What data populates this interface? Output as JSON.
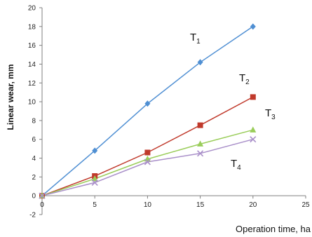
{
  "chart_data": {
    "type": "line",
    "title": "",
    "xlabel": "Operation time, ha",
    "ylabel": "Linear wear, mm",
    "xlim": [
      0,
      25
    ],
    "ylim": [
      -2,
      20
    ],
    "x_ticks": [
      "0",
      "5",
      "10",
      "15",
      "20",
      "25"
    ],
    "y_ticks": [
      "-2",
      "0",
      "2",
      "4",
      "6",
      "8",
      "10",
      "12",
      "14",
      "16",
      "18",
      "20"
    ],
    "grid": false,
    "x": [
      0,
      5,
      10,
      15,
      20
    ],
    "series": [
      {
        "name": "T1",
        "label_main": "T",
        "label_sub": "1",
        "marker": "diamond",
        "color": "#4f8fd3",
        "values": [
          0,
          4.8,
          9.8,
          14.2,
          18
        ]
      },
      {
        "name": "T2",
        "label_main": "T",
        "label_sub": "2",
        "marker": "square",
        "color": "#c0392b",
        "values": [
          0,
          2.1,
          4.6,
          7.5,
          10.5
        ]
      },
      {
        "name": "T3",
        "label_main": "T",
        "label_sub": "3",
        "marker": "triangle",
        "color": "#9acd5a",
        "values": [
          0,
          1.8,
          3.9,
          5.5,
          7
        ]
      },
      {
        "name": "T4",
        "label_main": "T",
        "label_sub": "4",
        "marker": "x",
        "color": "#a98fc9",
        "values": [
          0,
          1.4,
          3.6,
          4.5,
          6
        ]
      }
    ]
  }
}
